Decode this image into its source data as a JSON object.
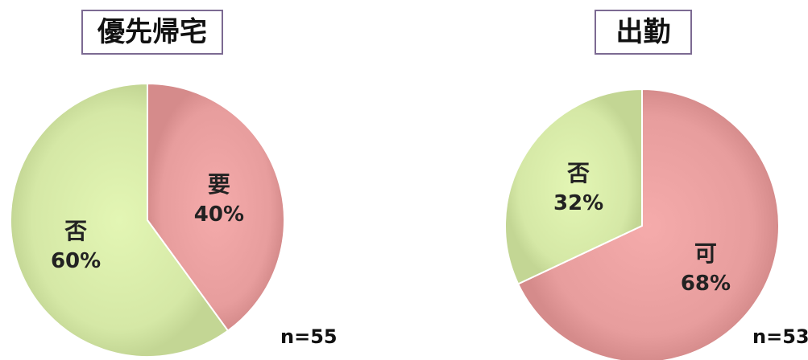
{
  "chart_data": [
    {
      "type": "pie",
      "title": "優先帰宅",
      "note": "n=55",
      "slices": [
        {
          "label": "要",
          "value": 40,
          "display": "40%",
          "color": "#e79d9d"
        },
        {
          "label": "否",
          "value": 60,
          "display": "60%",
          "color": "#d5e8a6"
        }
      ]
    },
    {
      "type": "pie",
      "title": "出勤",
      "note": "n=53",
      "slices": [
        {
          "label": "可",
          "value": 68,
          "display": "68%",
          "color": "#e79d9d"
        },
        {
          "label": "否",
          "value": 32,
          "display": "32%",
          "color": "#d5e8a6"
        }
      ]
    }
  ]
}
